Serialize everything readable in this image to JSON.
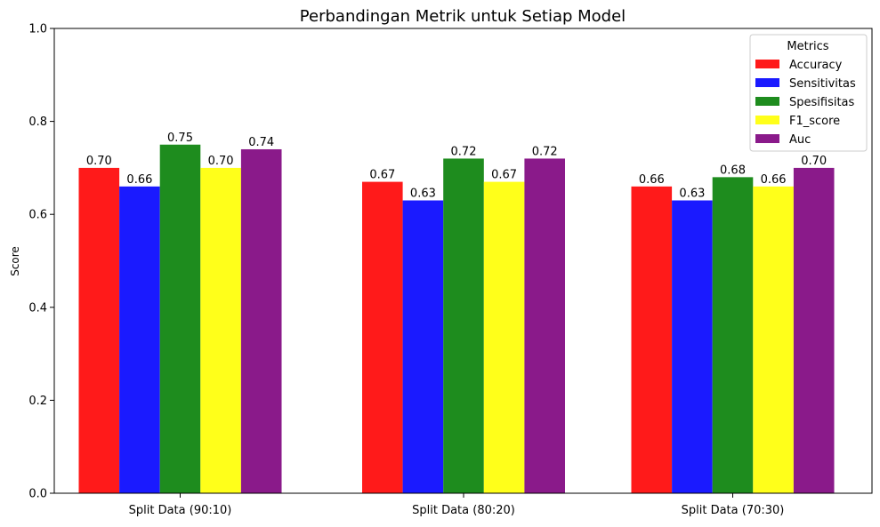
{
  "chart_data": {
    "type": "bar",
    "title": "Perbandingan Metrik untuk Setiap Model",
    "xlabel": "",
    "ylabel": "Score",
    "ylim": [
      0,
      1.0
    ],
    "yticks": [
      "0.0",
      "0.2",
      "0.4",
      "0.6",
      "0.8",
      "1.0"
    ],
    "grid": false,
    "legend_title": "Metrics",
    "legend_position": "top-right",
    "categories": [
      "Split Data (90:10)",
      "Split Data (80:20)",
      "Split Data (70:30)"
    ],
    "series": [
      {
        "name": "Accuracy",
        "color": "#ff1a1a",
        "values": [
          0.7,
          0.67,
          0.66
        ]
      },
      {
        "name": "Sensitivitas",
        "color": "#1a1aff",
        "values": [
          0.66,
          0.63,
          0.63
        ]
      },
      {
        "name": "Spesifisitas",
        "color": "#1e8c1e",
        "values": [
          0.75,
          0.72,
          0.68
        ]
      },
      {
        "name": "F1_score",
        "color": "#ffff1a",
        "values": [
          0.7,
          0.67,
          0.66
        ]
      },
      {
        "name": "Auc",
        "color": "#8a1a8a",
        "values": [
          0.74,
          0.72,
          0.7
        ]
      }
    ]
  }
}
